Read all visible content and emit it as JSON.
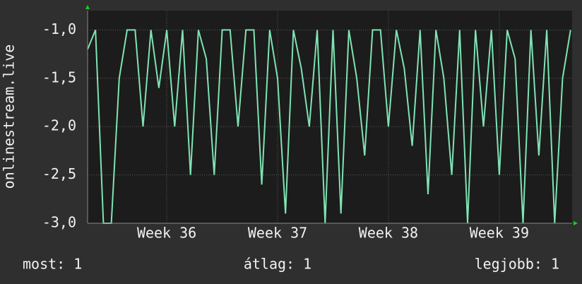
{
  "chart_data": {
    "type": "line",
    "ylabel": "onlinestream.live",
    "x": [
      0,
      0.5,
      1,
      1.5,
      2,
      2.5,
      3,
      3.5,
      4,
      4.5,
      5,
      5.5,
      6,
      6.5,
      7,
      7.5,
      8,
      8.5,
      9,
      9.5,
      10,
      10.5,
      11,
      11.5,
      12,
      12.5,
      13,
      13.5,
      14,
      14.5,
      15,
      15.5,
      16,
      16.5,
      17,
      17.5,
      18,
      18.5,
      19,
      19.5,
      20,
      20.5,
      21,
      21.5,
      22,
      22.5,
      23,
      23.5,
      24,
      24.5,
      25,
      25.5,
      26,
      26.5,
      27,
      27.5,
      28,
      28.5,
      29,
      29.5,
      30,
      30.5
    ],
    "series": [
      {
        "color": "#7fe3b3",
        "values": [
          -1.2,
          -1.0,
          -3.0,
          -3.0,
          -1.5,
          -1.0,
          -1.0,
          -2.0,
          -1.0,
          -1.6,
          -1.0,
          -2.0,
          -1.0,
          -2.5,
          -1.0,
          -1.3,
          -2.5,
          -1.0,
          -1.0,
          -2.0,
          -1.0,
          -1.0,
          -2.6,
          -1.0,
          -1.5,
          -2.9,
          -1.0,
          -1.4,
          -2.0,
          -1.0,
          -3.0,
          -1.0,
          -2.9,
          -1.0,
          -1.5,
          -2.3,
          -1.0,
          -1.0,
          -2.0,
          -1.0,
          -1.4,
          -2.2,
          -1.0,
          -2.7,
          -1.0,
          -1.5,
          -2.5,
          -1.0,
          -3.0,
          -1.0,
          -2.0,
          -1.0,
          -2.5,
          -1.0,
          -1.3,
          -3.0,
          -1.0,
          -2.3,
          -1.0,
          -3.0,
          -1.5,
          -1.0
        ]
      }
    ],
    "xlim": [
      0,
      30.6
    ],
    "xticks": [
      {
        "value": 5,
        "label": "Week 36"
      },
      {
        "value": 12,
        "label": "Week 37"
      },
      {
        "value": 19,
        "label": "Week 38"
      },
      {
        "value": 26,
        "label": "Week 39"
      }
    ],
    "ylim": [
      -3,
      -0.8
    ],
    "yticks": [
      {
        "value": -3,
        "label": "-3,0"
      },
      {
        "value": -2.5,
        "label": "-2,5"
      },
      {
        "value": -2,
        "label": "-2,0"
      },
      {
        "value": -1.5,
        "label": "-1,5"
      },
      {
        "value": -1,
        "label": "-1,0"
      }
    ],
    "grid": true,
    "footer": [
      "most: 1",
      "átlag: 1",
      "legjobb: 1"
    ]
  }
}
